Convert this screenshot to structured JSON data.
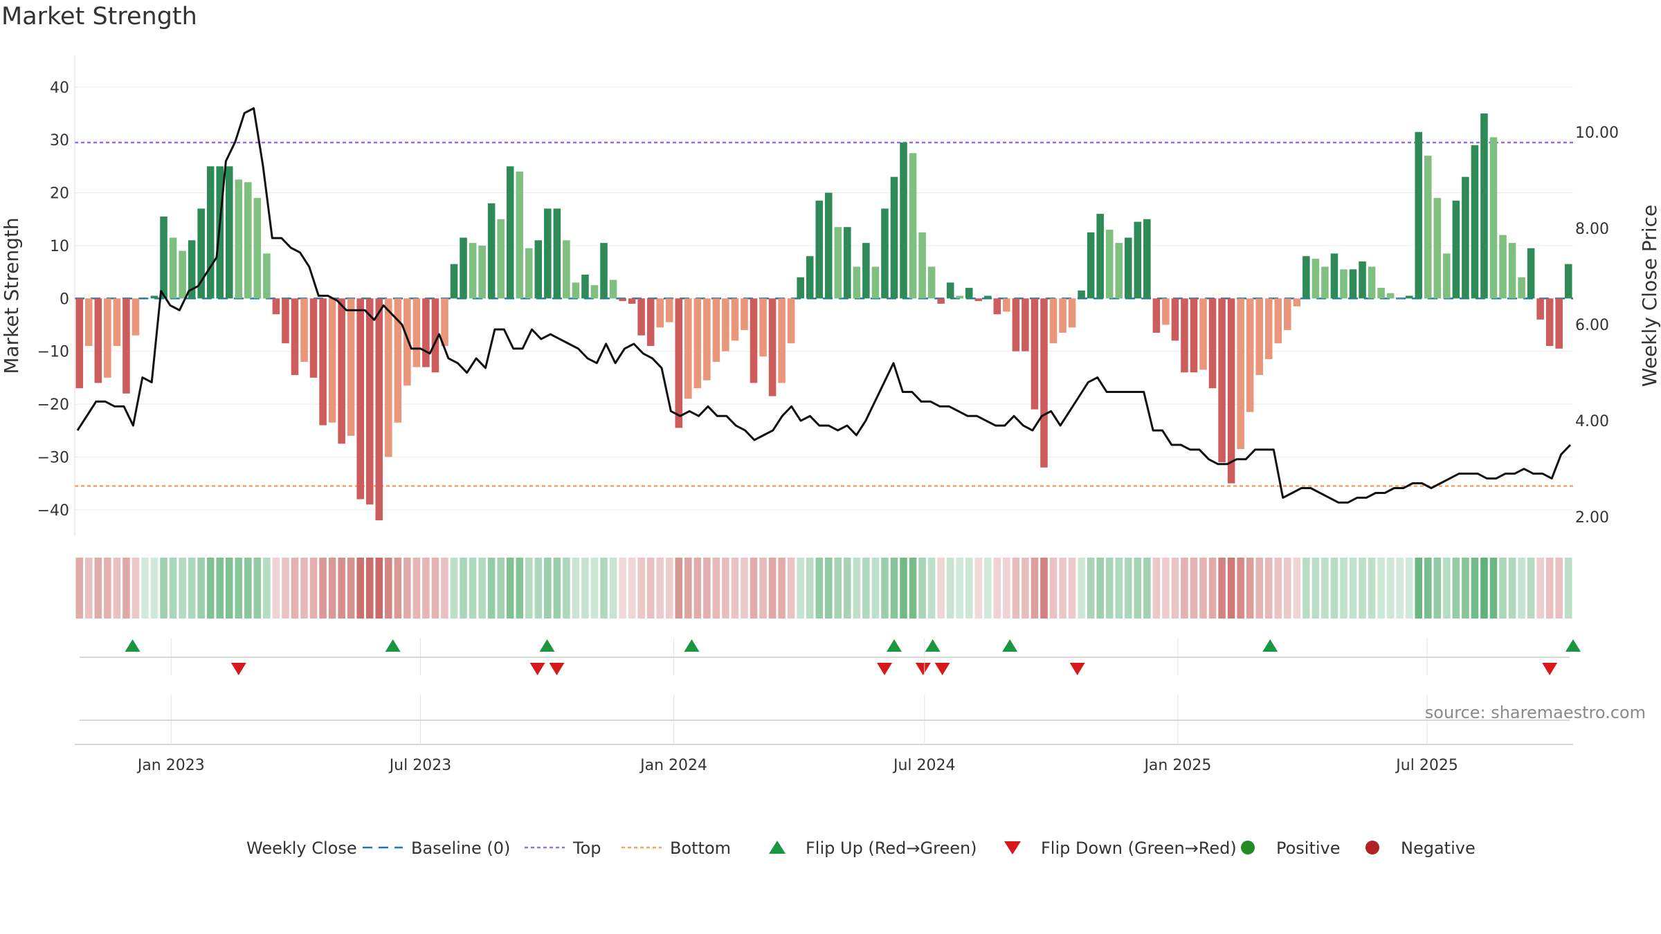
{
  "title": "Market Strength",
  "source": "source: sharemaestro.com",
  "colors": {
    "green_strong": "#2e8b57",
    "green_weak": "#7fbf7f",
    "red_strong": "#cd5c5c",
    "red_weak": "#e9967a",
    "line": "#111111",
    "baseline": "#1f77b4",
    "top": "#9370db",
    "bottom": "#f4a460",
    "flip_up": "#1a9641",
    "flip_down": "#d7191c",
    "positive": "#228b22",
    "negative": "#b22222"
  },
  "chart_data": {
    "type": "bar",
    "title": "Market Strength",
    "ylabel_left": "Market Strength",
    "ylabel_right": "Weekly Close Price",
    "ylim_left": [
      -45,
      46
    ],
    "yticks_left": [
      40,
      30,
      20,
      10,
      0,
      -10,
      -20,
      -30,
      -40
    ],
    "ytick_labels_left": [
      "40",
      "30",
      "20",
      "10",
      "0",
      "−10",
      "−20",
      "−30",
      "−40"
    ],
    "ylim_right": [
      1.6,
      11.6
    ],
    "yticks_right": [
      10,
      8,
      6,
      4,
      2
    ],
    "ytick_labels_right": [
      "10.00",
      "8.00",
      "6.00",
      "4.00",
      "2.00"
    ],
    "x_start": "2022-10-23",
    "x_end": "2025-10-15",
    "x_ticks": [
      {
        "date": "2023-01-01",
        "label": "Jan 2023"
      },
      {
        "date": "2023-07-01",
        "label": "Jul 2023"
      },
      {
        "date": "2024-01-01",
        "label": "Jan 2024"
      },
      {
        "date": "2024-07-01",
        "label": "Jul 2024"
      },
      {
        "date": "2025-01-01",
        "label": "Jan 2025"
      },
      {
        "date": "2025-07-01",
        "label": "Jul 2025"
      }
    ],
    "top_level": 29.5,
    "bottom_level": -35.5,
    "strength": [
      -17,
      -9,
      -16,
      -15,
      -9,
      -18,
      -7,
      0,
      0.5,
      15.5,
      11.5,
      9,
      11,
      17,
      25,
      25,
      25,
      22.5,
      22,
      19,
      8.5,
      -3,
      -8.5,
      -14.5,
      -12,
      -15,
      -24,
      -23.5,
      -27.5,
      -26,
      -38,
      -39,
      -42,
      -30,
      -23.5,
      -16.5,
      -13,
      -13,
      -14,
      -9,
      6.5,
      11.5,
      10.5,
      10,
      18,
      15,
      25,
      24,
      9.5,
      11,
      17,
      17,
      11,
      3,
      4.5,
      2.5,
      10.5,
      3.5,
      -0.5,
      -1,
      -7,
      -9,
      -5.5,
      -4.5,
      -24.5,
      -19,
      -17,
      -15.5,
      -12,
      -10,
      -8,
      -6,
      -16,
      -11,
      -18.5,
      -16,
      -8.5,
      4,
      8,
      18.5,
      20,
      13.5,
      13.5,
      6,
      10.5,
      6,
      17,
      23,
      29.5,
      27.5,
      12.5,
      6,
      -1,
      3,
      0.5,
      2,
      -0.5,
      0.5,
      -3,
      -2.5,
      -10,
      -10,
      -21,
      -32,
      -8.5,
      -6.5,
      -5.5,
      1.5,
      12.5,
      16,
      13,
      10.5,
      11.5,
      14.5,
      15,
      -6.5,
      -5,
      -8,
      -14,
      -14,
      -13.5,
      -17,
      -31,
      -35,
      -28.5,
      -21.5,
      -14.5,
      -11.5,
      -8.5,
      -6,
      -1.5,
      8,
      7.5,
      6,
      8.5,
      5.5,
      5.5,
      7,
      6,
      2,
      1,
      0,
      0.5,
      31.5,
      27,
      19,
      8.5,
      18.5,
      23,
      29,
      35,
      30.5,
      12,
      10.5,
      4,
      9.5,
      -4,
      -9,
      -9.5,
      6.5
    ],
    "close": [
      3.8,
      4.1,
      4.4,
      4.4,
      4.3,
      4.3,
      3.9,
      4.9,
      4.8,
      6.7,
      6.4,
      6.3,
      6.7,
      6.8,
      7.1,
      7.4,
      9.4,
      9.8,
      10.4,
      10.5,
      9.3,
      7.8,
      7.8,
      7.6,
      7.5,
      7.2,
      6.6,
      6.6,
      6.5,
      6.3,
      6.3,
      6.3,
      6.1,
      6.4,
      6.2,
      6.0,
      5.5,
      5.5,
      5.4,
      5.8,
      5.3,
      5.2,
      5.0,
      5.3,
      5.1,
      5.9,
      5.9,
      5.5,
      5.5,
      5.9,
      5.7,
      5.8,
      5.7,
      5.6,
      5.5,
      5.3,
      5.2,
      5.6,
      5.2,
      5.5,
      5.6,
      5.4,
      5.3,
      5.1,
      4.2,
      4.1,
      4.2,
      4.1,
      4.3,
      4.1,
      4.1,
      3.9,
      3.8,
      3.6,
      3.7,
      3.8,
      4.1,
      4.3,
      4.0,
      4.1,
      3.9,
      3.9,
      3.8,
      3.9,
      3.7,
      4.0,
      4.4,
      4.8,
      5.2,
      4.6,
      4.6,
      4.4,
      4.4,
      4.3,
      4.3,
      4.2,
      4.1,
      4.1,
      4.0,
      3.9,
      3.9,
      4.1,
      3.9,
      3.8,
      4.1,
      4.2,
      3.9,
      4.2,
      4.5,
      4.8,
      4.9,
      4.6,
      4.6,
      4.6,
      4.6,
      4.6,
      3.8,
      3.8,
      3.5,
      3.5,
      3.4,
      3.4,
      3.2,
      3.1,
      3.1,
      3.2,
      3.2,
      3.4,
      3.4,
      3.4,
      2.4,
      2.5,
      2.6,
      2.6,
      2.5,
      2.4,
      2.3,
      2.3,
      2.4,
      2.4,
      2.5,
      2.5,
      2.6,
      2.6,
      2.7,
      2.7,
      2.6,
      2.7,
      2.8,
      2.9,
      2.9,
      2.9,
      2.8,
      2.8,
      2.9,
      2.9,
      3.0,
      2.9,
      2.9,
      2.8,
      3.3,
      3.5
    ],
    "flip_up_dates": [
      "2022-12-04",
      "2023-06-11",
      "2023-10-01",
      "2024-01-14",
      "2024-06-09",
      "2024-07-07",
      "2024-09-01",
      "2025-03-09",
      "2025-10-15"
    ],
    "flip_down_dates": [
      "2023-02-19",
      "2023-09-24",
      "2023-10-08",
      "2024-06-02",
      "2024-06-30",
      "2024-07-14",
      "2024-10-20",
      "2025-09-28"
    ],
    "legend": [
      {
        "key": "close",
        "label": "Weekly Close",
        "marker": "line"
      },
      {
        "key": "baseline",
        "label": "Baseline (0)",
        "marker": "dash"
      },
      {
        "key": "top",
        "label": "Top",
        "marker": "dot"
      },
      {
        "key": "bottom",
        "label": "Bottom",
        "marker": "dot"
      },
      {
        "key": "flip_up",
        "label": "Flip Up (Red→Green)",
        "marker": "triangle-up"
      },
      {
        "key": "flip_down",
        "label": "Flip Down (Green→Red)",
        "marker": "triangle-down"
      },
      {
        "key": "positive",
        "label": "Positive",
        "marker": "circle"
      },
      {
        "key": "negative",
        "label": "Negative",
        "marker": "circle"
      }
    ]
  }
}
